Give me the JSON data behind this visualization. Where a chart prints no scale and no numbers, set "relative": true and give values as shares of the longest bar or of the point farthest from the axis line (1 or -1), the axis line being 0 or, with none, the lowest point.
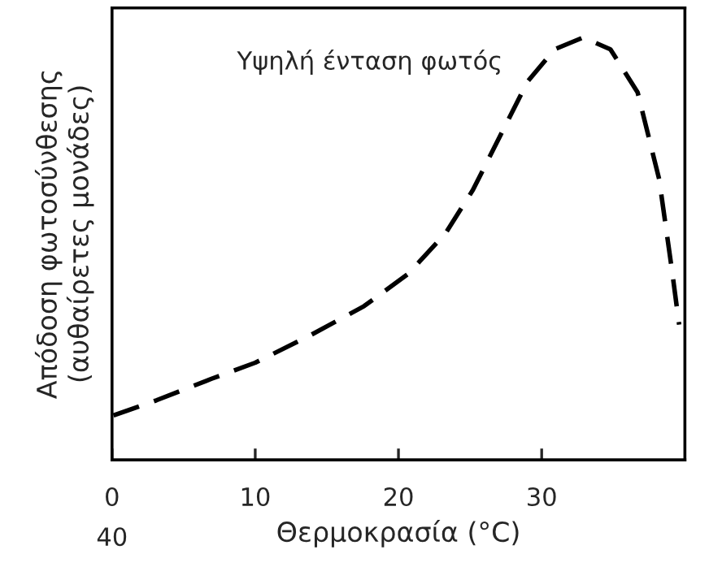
{
  "chart_data": {
    "type": "line",
    "relative": true,
    "xlabel": "Θερμοκρασία (°C)",
    "ylabel": "Απόδοση φωτοσύνθεσης\n(αυθαίρετες μονάδες)",
    "annotations": [
      "Υψηλή ένταση φωτός",
      "40"
    ],
    "xlim": [
      0,
      40
    ],
    "xticks": [
      0,
      10,
      20,
      30
    ],
    "line_style": "dashed",
    "grid": false,
    "series": [
      {
        "color": "#000000",
        "x": [
          0.1,
          3.1,
          6.95,
          10,
          13.8,
          17.6,
          20.7,
          23.3,
          25.2,
          27.1,
          29.0,
          30.9,
          32.9,
          34.8,
          36.7,
          38.2,
          39.1,
          39.6
        ],
        "values": [
          0.105,
          0.141,
          0.192,
          0.23,
          0.294,
          0.364,
          0.441,
          0.537,
          0.639,
          0.767,
          0.895,
          0.972,
          1.0,
          0.972,
          0.87,
          0.665,
          0.448,
          0.32
        ]
      }
    ]
  }
}
